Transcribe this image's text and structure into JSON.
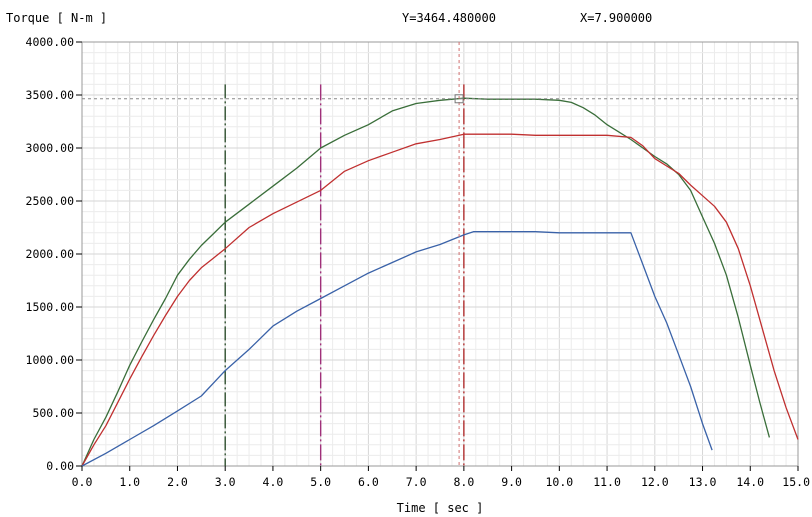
{
  "chart_data": {
    "type": "line",
    "title": "",
    "ylabel": "Torque [ N-m  ]",
    "xlabel": "Time [ sec ]",
    "cursor_readout": {
      "y_text": "Y=3464.480000",
      "x_text": "X=7.900000"
    },
    "cursor": {
      "x": 7.9,
      "y": 3464.48
    },
    "xlim": [
      0,
      15
    ],
    "ylim": [
      0,
      4000
    ],
    "x_ticks": [
      "0.0",
      "1.0",
      "2.0",
      "3.0",
      "4.0",
      "5.0",
      "6.0",
      "7.0",
      "8.0",
      "9.0",
      "10.0",
      "11.0",
      "12.0",
      "13.0",
      "14.0",
      "15.0"
    ],
    "y_ticks": [
      "0.00",
      "500.00",
      "1000.00",
      "1500.00",
      "2000.00",
      "2500.00",
      "3000.00",
      "3500.00",
      "4000.00"
    ],
    "grid": true,
    "markers": [
      {
        "x": 3.0,
        "color": "#2f4f2f",
        "style": "dash"
      },
      {
        "x": 5.0,
        "color": "#a0307a",
        "style": "dashdot"
      },
      {
        "x": 8.0,
        "color": "#b03030",
        "style": "dashdot"
      }
    ],
    "series": [
      {
        "color": "#3a6e3a",
        "x": [
          0,
          0.25,
          0.5,
          0.75,
          1.0,
          1.25,
          1.5,
          1.75,
          2.0,
          2.25,
          2.5,
          2.75,
          3.0,
          3.5,
          4.0,
          4.5,
          5.0,
          5.5,
          6.0,
          6.5,
          7.0,
          7.5,
          8.0,
          8.5,
          9.0,
          9.5,
          10.0,
          10.25,
          10.5,
          10.75,
          11.0,
          11.25,
          11.5,
          11.75,
          12.0,
          12.25,
          12.5,
          12.75,
          13.0,
          13.25,
          13.5,
          13.75,
          14.0,
          14.2,
          14.4
        ],
        "y": [
          0,
          250,
          460,
          700,
          950,
          1170,
          1380,
          1580,
          1800,
          1950,
          2080,
          2190,
          2300,
          2470,
          2640,
          2810,
          3000,
          3120,
          3220,
          3350,
          3420,
          3450,
          3470,
          3460,
          3460,
          3460,
          3450,
          3430,
          3380,
          3310,
          3220,
          3150,
          3080,
          3000,
          2920,
          2850,
          2750,
          2600,
          2350,
          2100,
          1800,
          1400,
          950,
          600,
          270
        ]
      },
      {
        "color": "#c03030",
        "x": [
          0,
          0.25,
          0.5,
          0.75,
          1.0,
          1.25,
          1.5,
          1.75,
          2.0,
          2.25,
          2.5,
          2.75,
          3.0,
          3.5,
          4.0,
          4.5,
          5.0,
          5.5,
          6.0,
          6.5,
          7.0,
          7.5,
          8.0,
          8.5,
          9.0,
          9.5,
          10.0,
          10.5,
          11.0,
          11.5,
          11.75,
          12.0,
          12.25,
          12.5,
          12.75,
          13.0,
          13.25,
          13.5,
          13.75,
          14.0,
          14.25,
          14.5,
          14.75,
          15.0
        ],
        "y": [
          0,
          200,
          380,
          600,
          820,
          1030,
          1230,
          1420,
          1600,
          1750,
          1870,
          1960,
          2050,
          2250,
          2380,
          2490,
          2600,
          2780,
          2880,
          2960,
          3040,
          3080,
          3130,
          3130,
          3130,
          3120,
          3120,
          3120,
          3120,
          3100,
          3020,
          2900,
          2830,
          2760,
          2650,
          2550,
          2450,
          2300,
          2050,
          1700,
          1300,
          900,
          550,
          250
        ]
      },
      {
        "color": "#3a62a8",
        "x": [
          0,
          0.5,
          1.0,
          1.5,
          2.0,
          2.5,
          3.0,
          3.5,
          4.0,
          4.5,
          5.0,
          5.5,
          6.0,
          6.5,
          7.0,
          7.5,
          8.0,
          8.2,
          8.5,
          9.0,
          9.5,
          10.0,
          10.5,
          11.0,
          11.5,
          11.75,
          12.0,
          12.25,
          12.5,
          12.75,
          13.0,
          13.2
        ],
        "y": [
          0,
          120,
          250,
          380,
          520,
          660,
          900,
          1100,
          1320,
          1460,
          1580,
          1700,
          1820,
          1920,
          2020,
          2090,
          2180,
          2210,
          2210,
          2210,
          2210,
          2200,
          2200,
          2200,
          2200,
          1900,
          1600,
          1350,
          1050,
          750,
          400,
          150
        ]
      }
    ]
  }
}
